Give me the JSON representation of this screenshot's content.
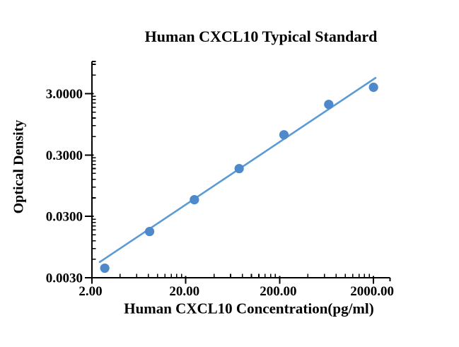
{
  "chart_data": {
    "type": "scatter",
    "title": "Human CXCL10 Typical Standard",
    "xlabel": "Human CXCL10 Concentration(pg/ml)",
    "ylabel": "Optical Density",
    "x_scale": "log",
    "y_scale": "log",
    "xlim": [
      2,
      3000
    ],
    "ylim": [
      0.003,
      10
    ],
    "x_ticks": {
      "values": [
        2,
        20,
        200,
        2000
      ],
      "labels": [
        "2.00",
        "20.00",
        "200.00",
        "2000.00"
      ]
    },
    "y_ticks": {
      "values": [
        0.003,
        0.03,
        0.3,
        3
      ],
      "labels": [
        "0.0030",
        "0.0300",
        "0.3000",
        "3.0000"
      ]
    },
    "grid": false,
    "legend": false,
    "axis_color": "#000000",
    "background": "#FFFFFF",
    "series": [
      {
        "name": "fit-line",
        "type": "line",
        "color": "#5B9BD5",
        "x": [
          2.42,
          2100
        ],
        "y": [
          0.0054,
          5.4
        ]
      },
      {
        "name": "standard-points",
        "type": "scatter",
        "color": "#4E8ACB",
        "x": [
          2.74,
          8.23,
          24.69,
          74.07,
          222.22,
          666.67,
          2000
        ],
        "y": [
          0.0043,
          0.017,
          0.056,
          0.18,
          0.64,
          2.0,
          3.8
        ]
      }
    ]
  }
}
